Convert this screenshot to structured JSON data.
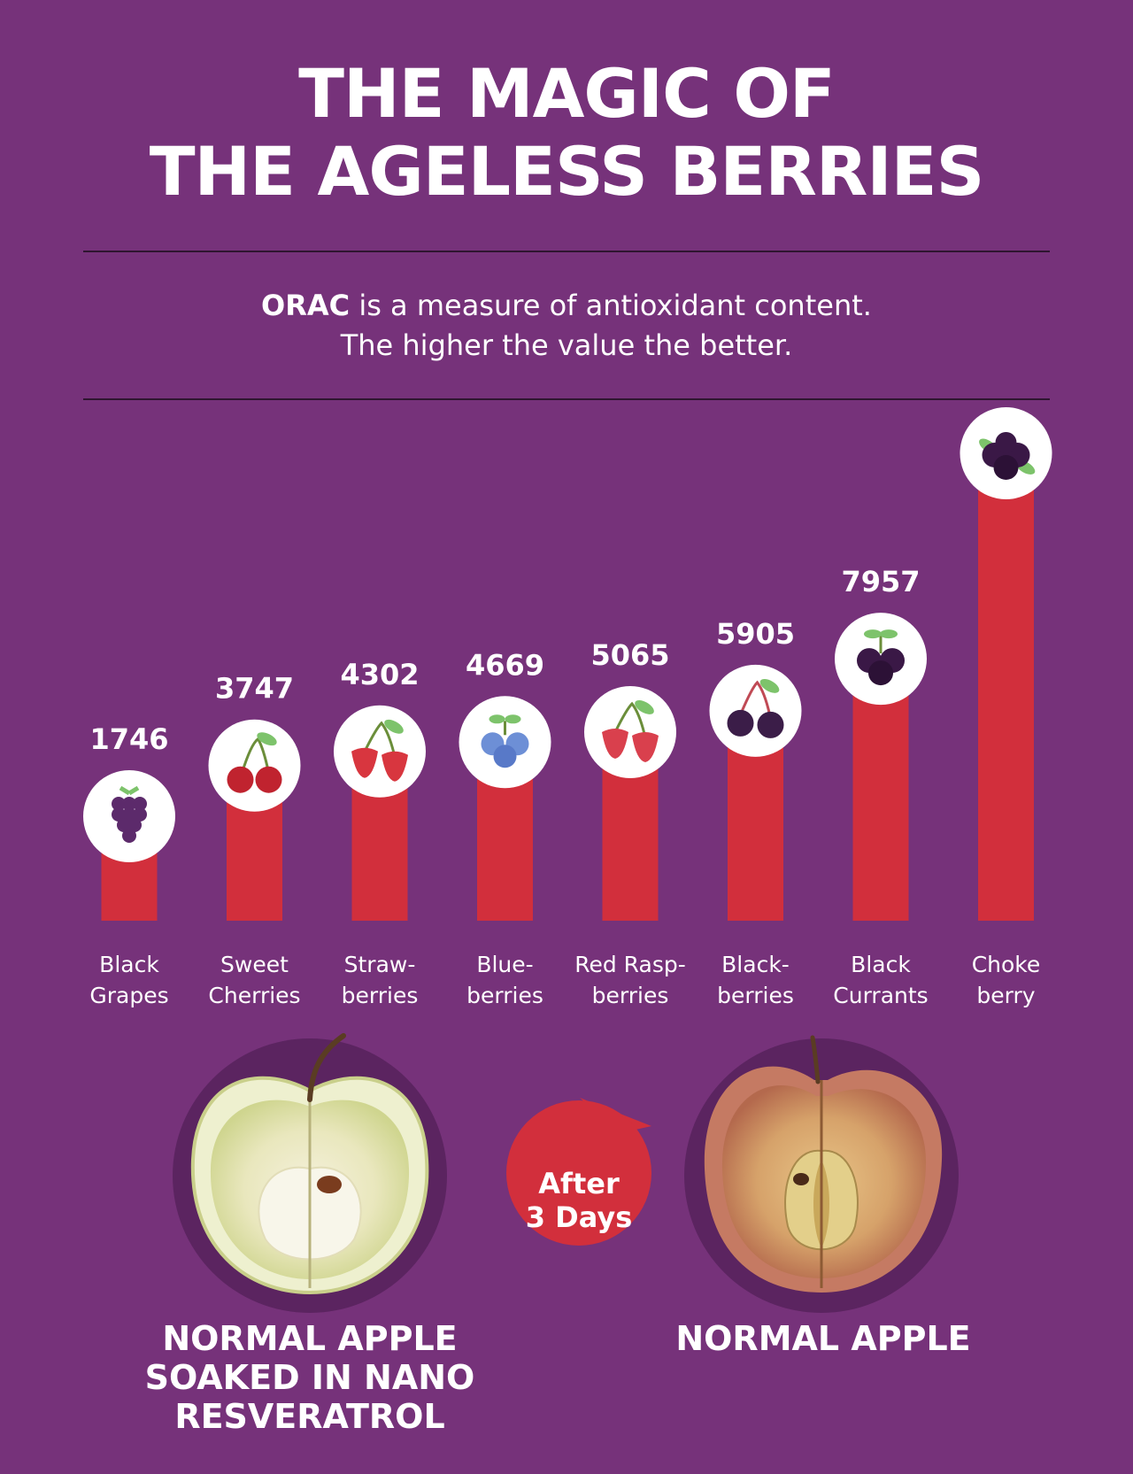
{
  "header": {
    "title_line1": "THE MAGIC OF",
    "title_line2": "THE AGELESS BERRIES"
  },
  "intro": {
    "term": "ORAC",
    "line1_rest": " is a measure of antioxidant content.",
    "line2": "The higher the value the better."
  },
  "chart_data": {
    "type": "bar",
    "categories": [
      [
        "Black",
        "Grapes"
      ],
      [
        "Sweet",
        "Cherries"
      ],
      [
        "Straw-",
        "berries"
      ],
      [
        "Blue-",
        "berries"
      ],
      [
        "Red Rasp-",
        "berries"
      ],
      [
        "Black-",
        "berries"
      ],
      [
        "Black",
        "Currants"
      ],
      [
        "Choke",
        "berry"
      ]
    ],
    "values": [
      1746,
      3747,
      4302,
      4669,
      5065,
      5905,
      7957,
      16062
    ],
    "icons": [
      "grapes-icon",
      "cherries-icon",
      "strawberries-icon",
      "blueberries-icon",
      "raspberries-icon",
      "blackberries-icon",
      "black-currants-icon",
      "chokeberry-icon"
    ],
    "bar_color": "#d22f3c"
  },
  "comparison": {
    "left_label": [
      "NORMAL APPLE",
      "SOAKED IN NANO",
      "RESVERATROL"
    ],
    "badge": [
      "After",
      "3 Days"
    ],
    "right_label": [
      "NORMAL APPLE"
    ]
  },
  "colors": {
    "background": "#76327a",
    "accent_red": "#d22f3c",
    "rule": "#2e1530"
  }
}
